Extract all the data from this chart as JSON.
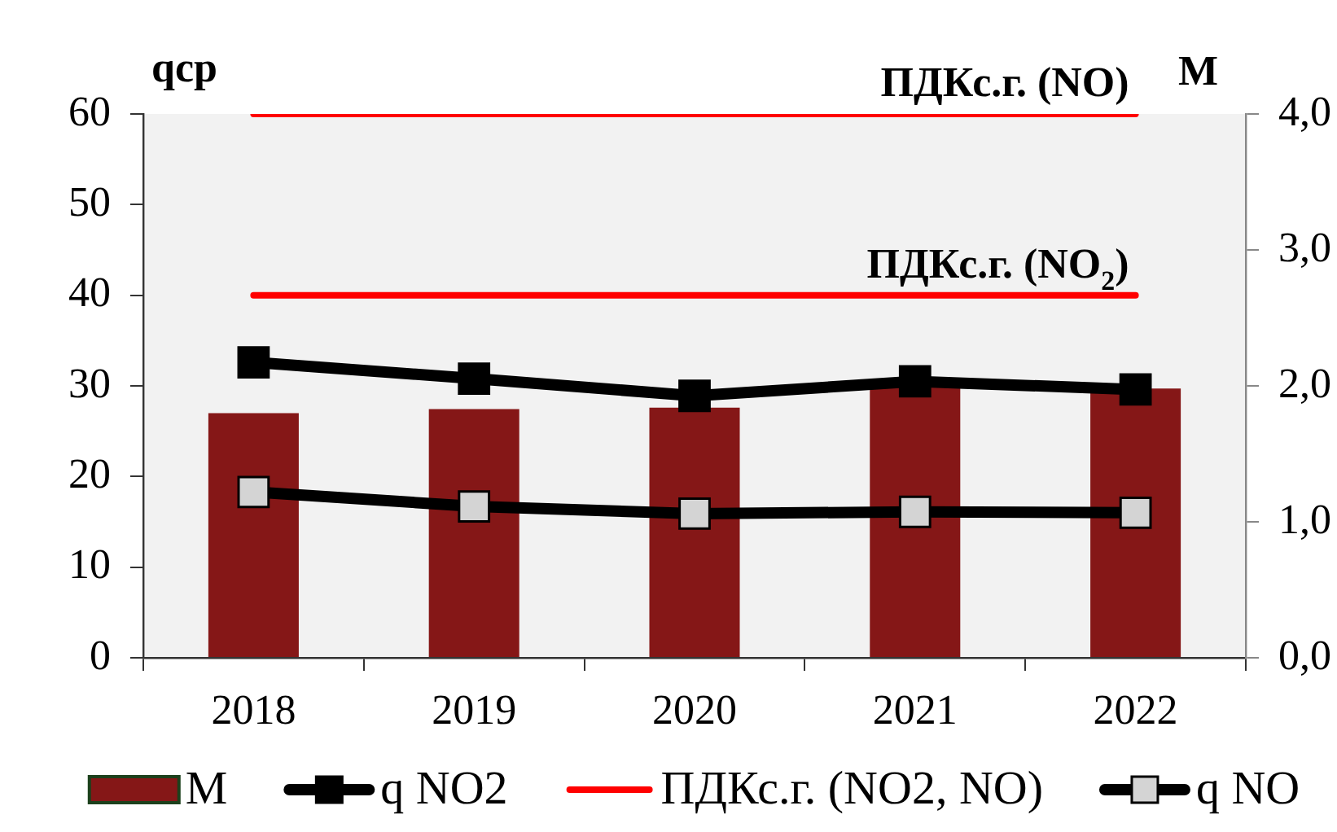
{
  "chart_data": {
    "type": "bar",
    "ylabel": "qcp",
    "y2label": "M",
    "categories": [
      "2018",
      "2019",
      "2020",
      "2021",
      "2022"
    ],
    "series": [
      {
        "name": "M",
        "axis": "y2",
        "color": "#851717",
        "values": [
          1.8,
          1.83,
          1.84,
          1.99,
          1.98
        ]
      },
      {
        "name": "q NO2",
        "type": "line",
        "color": "#000000",
        "values": [
          32.6,
          30.8,
          28.9,
          30.5,
          29.6
        ]
      },
      {
        "name": "ПДКс.г. (NO2, NO)",
        "type": "line",
        "color": "#ff0000",
        "marker": "none",
        "values": [
          40,
          40,
          40,
          40,
          40
        ]
      },
      {
        "type": "line",
        "color": "#ff0000",
        "marker": "none",
        "values": [
          60,
          60,
          60,
          60,
          60
        ]
      },
      {
        "name": "q NO",
        "type": "line",
        "color": "#000000",
        "colors": [
          "#d4d4d4",
          "#d4d4d4",
          "#d4d4d4",
          "#d4d4d4",
          "#d4d4d4"
        ],
        "values": [
          18.3,
          16.7,
          15.9,
          16.1,
          16.0
        ]
      }
    ],
    "ylim": [
      0,
      60
    ],
    "yticks": [
      0,
      10,
      20,
      30,
      40,
      50,
      60
    ],
    "y2lim": [
      0,
      4
    ],
    "y2ticks": [
      {
        "value": 0,
        "label": "0,0"
      },
      {
        "value": 1,
        "label": "1,0"
      },
      {
        "value": 2,
        "label": "2,0"
      },
      {
        "value": 3,
        "label": "3,0"
      },
      {
        "value": 4,
        "label": "4,0"
      }
    ],
    "annotations": [
      {
        "text": "ПДКс.г. (NO)",
        "x": "2022",
        "y": 60
      },
      {
        "text": "ПДКс.г. (NO$_{2}$)",
        "x": "2022",
        "y": 40
      }
    ],
    "legend": "bottom",
    "marker": "square",
    "grid": false
  }
}
